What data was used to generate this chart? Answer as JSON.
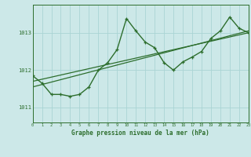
{
  "title": "Graphe pression niveau de la mer (hPa)",
  "bg_color": "#cce8e8",
  "grid_color": "#aad4d4",
  "line_color": "#2d6e2d",
  "x_min": 0,
  "x_max": 23,
  "y_min": 1010.6,
  "y_max": 1013.75,
  "yticks": [
    1011,
    1012,
    1013
  ],
  "xticks": [
    0,
    1,
    2,
    3,
    4,
    5,
    6,
    7,
    8,
    9,
    10,
    11,
    12,
    13,
    14,
    15,
    16,
    17,
    18,
    19,
    20,
    21,
    22,
    23
  ],
  "data_x": [
    0,
    1,
    2,
    3,
    4,
    5,
    6,
    7,
    8,
    9,
    10,
    11,
    12,
    13,
    14,
    15,
    16,
    17,
    18,
    19,
    20,
    21,
    22,
    23
  ],
  "data_y": [
    1011.85,
    1011.65,
    1011.35,
    1011.35,
    1011.3,
    1011.35,
    1011.55,
    1012.0,
    1012.2,
    1012.55,
    1013.38,
    1013.05,
    1012.75,
    1012.6,
    1012.2,
    1012.0,
    1012.22,
    1012.35,
    1012.5,
    1012.85,
    1013.05,
    1013.42,
    1013.12,
    1013.0
  ],
  "trend_x": [
    0,
    23
  ],
  "trend_y": [
    1011.55,
    1013.05
  ],
  "trend2_x": [
    0,
    23
  ],
  "trend2_y": [
    1011.7,
    1013.0
  ]
}
